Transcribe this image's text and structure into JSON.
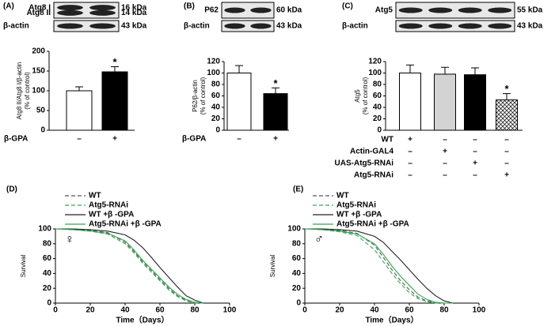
{
  "chart_data": [
    {
      "type": "bar",
      "panel_label": "(A)",
      "blots": [
        {
          "labels": [
            "Atg8 I",
            "Atg8 II"
          ],
          "sizes": [
            "16 kDa",
            "14 kDa"
          ]
        },
        {
          "labels": [
            "β-actin"
          ],
          "sizes": [
            "43 kDa"
          ]
        }
      ],
      "ylabel": [
        "Atg8 II/Atg8 I/β-actin",
        "(% of control)"
      ],
      "values": [
        100,
        148
      ],
      "errors": [
        10,
        13
      ],
      "colors": [
        "#ffffff",
        "#000000"
      ],
      "hatch": [
        false,
        false
      ],
      "ylim": [
        0,
        200
      ],
      "yticks": [
        0,
        50,
        100,
        150,
        200
      ],
      "annotations": [
        {
          "text": "*",
          "category": 1
        }
      ],
      "conditions": [
        {
          "label": "β-GPA",
          "marks": [
            "–",
            "+"
          ]
        }
      ]
    },
    {
      "type": "bar",
      "panel_label": "(B)",
      "blots": [
        {
          "labels": [
            "P62"
          ],
          "sizes": [
            "60 kDa"
          ]
        },
        {
          "labels": [
            "β-actin"
          ],
          "sizes": [
            "43 kDa"
          ]
        }
      ],
      "ylabel": [
        "P62/β-actin",
        "(% of control)"
      ],
      "values": [
        100,
        64
      ],
      "errors": [
        13,
        10
      ],
      "colors": [
        "#ffffff",
        "#000000"
      ],
      "hatch": [
        false,
        false
      ],
      "ylim": [
        0,
        120
      ],
      "yticks": [
        0,
        20,
        40,
        60,
        80,
        100,
        120
      ],
      "annotations": [
        {
          "text": "*",
          "category": 1
        }
      ],
      "conditions": [
        {
          "label": "β-GPA",
          "marks": [
            "–",
            "+"
          ]
        }
      ]
    },
    {
      "type": "bar",
      "panel_label": "(C)",
      "blots": [
        {
          "labels": [
            "Atg5"
          ],
          "sizes": [
            "55 kDa"
          ]
        },
        {
          "labels": [
            "β-actin"
          ],
          "sizes": [
            "43 kDa"
          ]
        }
      ],
      "ylabel": [
        "Atg5",
        "(% of control)"
      ],
      "values": [
        100,
        98,
        97,
        53
      ],
      "errors": [
        14,
        12,
        12,
        11
      ],
      "colors": [
        "#ffffff",
        "#d3d3d3",
        "#000000",
        "#ffffff"
      ],
      "hatch": [
        false,
        false,
        false,
        true
      ],
      "ylim": [
        0,
        120
      ],
      "yticks": [
        0,
        20,
        40,
        60,
        80,
        100,
        120
      ],
      "annotations": [
        {
          "text": "*",
          "category": 3
        }
      ],
      "conditions": [
        {
          "label": "WT",
          "marks": [
            "+",
            "–",
            "–",
            "–"
          ]
        },
        {
          "label": "Actin-GAL4",
          "marks": [
            "–",
            "+",
            "–",
            "–"
          ]
        },
        {
          "label": "UAS-Atg5-RNAi",
          "marks": [
            "–",
            "–",
            "+",
            "–"
          ]
        },
        {
          "label": "Atg5-RNAi",
          "marks": [
            "–",
            "–",
            "–",
            "+"
          ]
        }
      ]
    },
    {
      "type": "line",
      "panel_label": "(D)",
      "symbol": "♀",
      "xlabel": "Time（Days）",
      "ylabel": [
        "Survival"
      ],
      "x": [
        0,
        10,
        20,
        30,
        40,
        45,
        50,
        55,
        60,
        65,
        70,
        75,
        80,
        85
      ],
      "series": [
        {
          "name": "WT",
          "color": "#555555",
          "dash": true,
          "values": [
            100,
            100,
            98,
            95,
            82,
            70,
            56,
            44,
            32,
            20,
            10,
            4,
            1,
            0
          ]
        },
        {
          "name": "Atg5-RNAi",
          "color": "#3aa65a",
          "dash": true,
          "values": [
            100,
            99,
            97,
            93,
            80,
            68,
            54,
            42,
            30,
            18,
            9,
            3,
            0,
            0
          ]
        },
        {
          "name": "WT +β -GPA",
          "color": "#222222",
          "dash": false,
          "values": [
            100,
            100,
            99,
            97,
            92,
            85,
            75,
            62,
            48,
            35,
            22,
            10,
            4,
            0
          ]
        },
        {
          "name": "Atg5-RNAi +β -GPA",
          "color": "#2ea84e",
          "dash": false,
          "values": [
            100,
            99,
            97,
            94,
            84,
            72,
            58,
            46,
            34,
            22,
            12,
            5,
            1,
            0
          ]
        }
      ],
      "xlim": [
        0,
        100
      ],
      "xticks": [
        0,
        20,
        40,
        60,
        80,
        100
      ],
      "ylim": [
        0,
        100
      ],
      "yticks": [
        0,
        20,
        40,
        60,
        80,
        100
      ]
    },
    {
      "type": "line",
      "panel_label": "(E)",
      "symbol": "♂",
      "xlabel": "Time（Days）",
      "ylabel": [
        "Survival"
      ],
      "x": [
        0,
        10,
        20,
        30,
        40,
        45,
        50,
        55,
        60,
        65,
        70,
        75,
        80,
        85
      ],
      "series": [
        {
          "name": "WT",
          "color": "#555555",
          "dash": true,
          "values": [
            100,
            100,
            98,
            94,
            78,
            62,
            45,
            30,
            18,
            8,
            3,
            1,
            0,
            0
          ]
        },
        {
          "name": "Atg5-RNAi",
          "color": "#3aa65a",
          "dash": true,
          "values": [
            100,
            99,
            96,
            91,
            72,
            56,
            40,
            26,
            14,
            6,
            2,
            0,
            0,
            0
          ]
        },
        {
          "name": "WT +β -GPA",
          "color": "#222222",
          "dash": false,
          "values": [
            100,
            100,
            99,
            97,
            90,
            82,
            70,
            58,
            45,
            32,
            20,
            10,
            3,
            0
          ]
        },
        {
          "name": "Atg5-RNAi +β -GPA",
          "color": "#2ea84e",
          "dash": false,
          "values": [
            100,
            99,
            97,
            93,
            80,
            66,
            50,
            36,
            24,
            12,
            5,
            1,
            0,
            0
          ]
        }
      ],
      "xlim": [
        0,
        100
      ],
      "xticks": [
        0,
        20,
        40,
        60,
        80,
        100
      ],
      "ylim": [
        0,
        100
      ],
      "yticks": [
        0,
        20,
        40,
        60,
        80,
        100
      ]
    }
  ]
}
